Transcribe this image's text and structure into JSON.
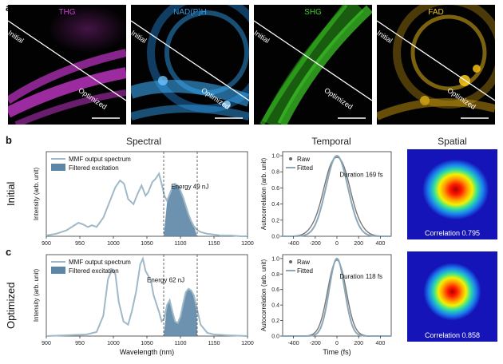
{
  "labels": {
    "a": "a",
    "b": "b",
    "c": "c"
  },
  "micrographs": [
    {
      "channel": "THG",
      "color": "#d03ad6",
      "glow": "#c235c8",
      "initial": "Initial",
      "optimized": "Optimized"
    },
    {
      "channel": "NAD(P)H",
      "color": "#2f9be8",
      "glow": "#3aa8f0",
      "initial": "Initial",
      "optimized": "Optimized"
    },
    {
      "channel": "SHG",
      "color": "#3fcf2a",
      "glow": "#37c021",
      "initial": "Initial",
      "optimized": "Optimized"
    },
    {
      "channel": "FAD",
      "color": "#f2c21a",
      "glow": "#e8b314",
      "initial": "Initial",
      "optimized": "Optimized"
    }
  ],
  "columns": {
    "spectral": "Spectral",
    "temporal": "Temporal",
    "spatial": "Spatial"
  },
  "rows": {
    "initial": "Initial",
    "optimized": "Optimized"
  },
  "chart_data": [
    {
      "type": "area",
      "panel": "spectral-initial",
      "xlabel": "",
      "ylabel": "Intensity (arb. unit)",
      "xlim": [
        900,
        1200
      ],
      "xticks": [
        900,
        950,
        1000,
        1050,
        1100,
        1150,
        1200
      ],
      "legend": [
        "MMF output spectrum",
        "Filtered excitation"
      ],
      "annotation": "Energy 49 nJ",
      "filter_window": [
        1075,
        1125
      ],
      "series": [
        {
          "name": "MMF output spectrum",
          "x": [
            900,
            915,
            930,
            940,
            948,
            955,
            962,
            968,
            975,
            985,
            995,
            1003,
            1010,
            1016,
            1022,
            1030,
            1036,
            1042,
            1048,
            1052,
            1058,
            1063,
            1068,
            1072,
            1076,
            1080,
            1084,
            1088,
            1092,
            1096,
            1100,
            1104,
            1108,
            1112,
            1116,
            1120,
            1124,
            1130,
            1140,
            1150,
            1160,
            1175,
            1190,
            1200
          ],
          "y": [
            0.01,
            0.03,
            0.07,
            0.12,
            0.16,
            0.14,
            0.11,
            0.13,
            0.11,
            0.22,
            0.42,
            0.58,
            0.66,
            0.62,
            0.44,
            0.38,
            0.5,
            0.6,
            0.48,
            0.52,
            0.64,
            0.68,
            0.74,
            0.62,
            0.48,
            0.42,
            0.5,
            0.58,
            0.62,
            0.6,
            0.54,
            0.46,
            0.36,
            0.26,
            0.18,
            0.12,
            0.08,
            0.05,
            0.03,
            0.02,
            0.01,
            0.01,
            0.0,
            0.0
          ]
        },
        {
          "name": "Filtered excitation",
          "x": [
            1075,
            1080,
            1084,
            1088,
            1092,
            1096,
            1100,
            1104,
            1108,
            1112,
            1116,
            1120,
            1125
          ],
          "y": [
            0.0,
            0.4,
            0.5,
            0.58,
            0.62,
            0.6,
            0.54,
            0.46,
            0.36,
            0.26,
            0.18,
            0.12,
            0.0
          ]
        }
      ]
    },
    {
      "type": "area",
      "panel": "spectral-optimized",
      "xlabel": "Wavelength (nm)",
      "ylabel": "Intensity (arb. unit)",
      "xlim": [
        900,
        1200
      ],
      "xticks": [
        900,
        950,
        1000,
        1050,
        1100,
        1150,
        1200
      ],
      "legend": [
        "MMF output spectrum",
        "Filtered excitation"
      ],
      "annotation": "Energy 62 nJ",
      "filter_window": [
        1075,
        1125
      ],
      "series": [
        {
          "name": "MMF output spectrum",
          "x": [
            900,
            930,
            960,
            975,
            985,
            992,
            998,
            1003,
            1008,
            1015,
            1022,
            1028,
            1034,
            1040,
            1044,
            1048,
            1052,
            1056,
            1060,
            1064,
            1068,
            1072,
            1076,
            1080,
            1084,
            1088,
            1092,
            1096,
            1100,
            1104,
            1108,
            1112,
            1116,
            1120,
            1124,
            1130,
            1140,
            1150,
            1170,
            1200
          ],
          "y": [
            0.0,
            0.01,
            0.02,
            0.05,
            0.25,
            0.7,
            0.82,
            0.76,
            0.42,
            0.18,
            0.14,
            0.32,
            0.55,
            0.88,
            0.95,
            0.8,
            0.74,
            0.68,
            0.5,
            0.4,
            0.3,
            0.18,
            0.22,
            0.38,
            0.44,
            0.3,
            0.18,
            0.16,
            0.24,
            0.4,
            0.54,
            0.58,
            0.56,
            0.5,
            0.36,
            0.14,
            0.04,
            0.02,
            0.01,
            0.0
          ]
        },
        {
          "name": "Filtered excitation",
          "x": [
            1075,
            1080,
            1084,
            1088,
            1092,
            1096,
            1100,
            1104,
            1108,
            1112,
            1116,
            1120,
            1124,
            1125
          ],
          "y": [
            0.0,
            0.38,
            0.44,
            0.3,
            0.18,
            0.16,
            0.24,
            0.4,
            0.54,
            0.58,
            0.56,
            0.5,
            0.36,
            0.0
          ]
        }
      ]
    },
    {
      "type": "line",
      "panel": "temporal-initial",
      "xlabel": "",
      "ylabel": "Autocorrelation (arb. unit)",
      "xlim": [
        -500,
        500
      ],
      "ylim": [
        0,
        1.05
      ],
      "xticks": [
        -400,
        -200,
        0,
        200,
        400
      ],
      "yticks": [
        0.0,
        0.2,
        0.4,
        0.6,
        0.8,
        1.0
      ],
      "legend": [
        "Raw",
        "Fitted"
      ],
      "annotation": "Duration 169 fs",
      "fwhm_fs": 169
    },
    {
      "type": "line",
      "panel": "temporal-optimized",
      "xlabel": "Time (fs)",
      "ylabel": "Autocorrelation (arb. unit)",
      "xlim": [
        -500,
        500
      ],
      "ylim": [
        0,
        1.05
      ],
      "xticks": [
        -400,
        -200,
        0,
        200,
        400
      ],
      "yticks": [
        0.0,
        0.2,
        0.4,
        0.6,
        0.8,
        1.0
      ],
      "legend": [
        "Raw",
        "Fitted"
      ],
      "annotation": "Duration 118 fs",
      "fwhm_fs": 118
    },
    {
      "type": "heatmap",
      "panel": "spatial-initial",
      "annotation": "Correlation 0.795"
    },
    {
      "type": "heatmap",
      "panel": "spatial-optimized",
      "annotation": "Correlation 0.858"
    }
  ],
  "colors": {
    "mmf_line": "#9fb9c6",
    "filtered_fill": "#5c86a6",
    "raw_line": "#777777",
    "fit_line": "#8ca8b8"
  }
}
